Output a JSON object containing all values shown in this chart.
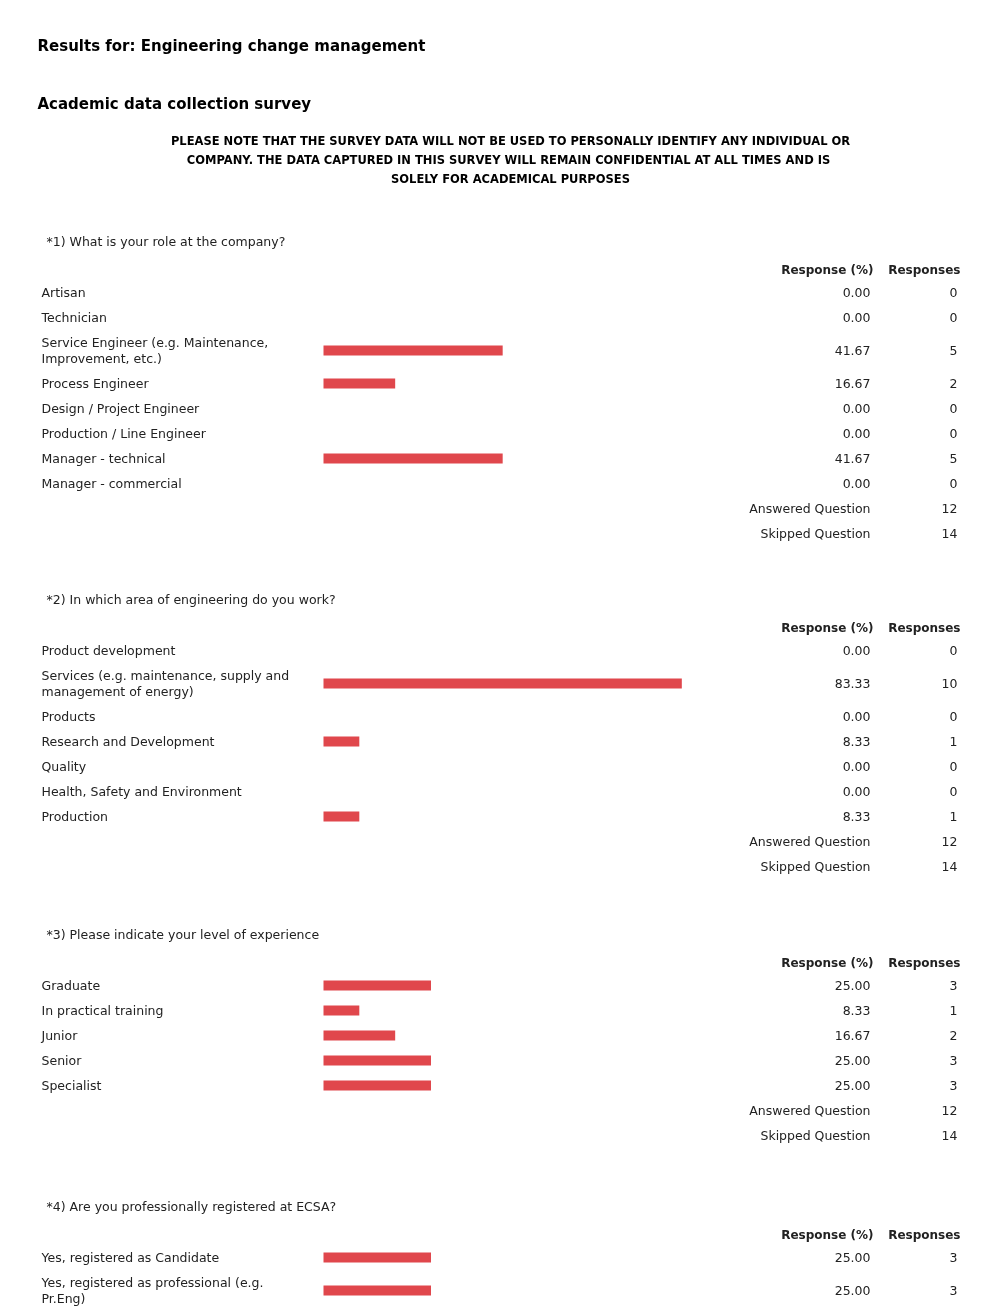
{
  "chart_data": [
    {
      "type": "other",
      "title": "Results for: Engineering change management",
      "subtitle": "Academic data collection survey",
      "annotations": [
        "PLEASE NOTE THAT THE SURVEY DATA WILL NOT BE USED TO PERSONALLY IDENTIFY ANY INDIVIDUAL OR COMPANY.  THE DATA CAPTURED IN THIS SURVEY WILL REMAIN CONFIDENTIAL AT ALL TIMES AND IS SOLELY FOR ACADEMICAL PURPOSES"
      ]
    },
    {
      "type": "bar",
      "orientation": "horizontal",
      "ylabel": "*1) What is your role at the company?",
      "tick_labels": false,
      "color": "#e0474c",
      "categories": [
        "Artisan",
        "Technician",
        "Service Engineer (e.g. Maintenance, Improvement, etc.)",
        "Process Engineer",
        "Design / Project Engineer",
        "Production / Line Engineer",
        "Manager - technical",
        "Manager - commercial"
      ],
      "values": [
        0,
        0,
        41.67,
        16.67,
        0,
        0,
        41.67,
        0
      ],
      "value_labels": [
        "0.00",
        "0.00",
        "41.67",
        "16.67",
        "0.00",
        "0.00",
        "41.67",
        "0.00"
      ],
      "annotations": [
        "Response (%)",
        "Responses",
        "0",
        "0",
        "5",
        "2",
        "0",
        "0",
        "5",
        "0",
        "Answered Question 12",
        "Skipped Question 14"
      ]
    },
    {
      "type": "bar",
      "orientation": "horizontal",
      "ylabel": "*2) In which area of engineering do you work?",
      "tick_labels": false,
      "color": "#e0474c",
      "categories": [
        "Product development",
        "Services (e.g. maintenance, supply and management of energy)",
        "Products",
        "Research and Development",
        "Quality",
        "Health, Safety and Environment",
        "Production"
      ],
      "values": [
        0,
        83.33,
        0,
        8.33,
        0,
        0,
        8.33
      ],
      "value_labels": [
        "0.00",
        "83.33",
        "0.00",
        "8.33",
        "0.00",
        "0.00",
        "8.33"
      ],
      "annotations": [
        "Response (%)",
        "Responses",
        "0",
        "10",
        "0",
        "1",
        "0",
        "0",
        "1",
        "Answered Question 12",
        "Skipped Question 14"
      ]
    },
    {
      "type": "bar",
      "orientation": "horizontal",
      "ylabel": "*3) Please indicate your level of experience",
      "tick_labels": false,
      "color": "#e0474c",
      "categories": [
        "Graduate",
        "In practical training",
        "Junior",
        "Senior",
        "Specialist"
      ],
      "values": [
        25,
        8.33,
        16.67,
        25,
        25
      ],
      "value_labels": [
        "25.00",
        "8.33",
        "16.67",
        "25.00",
        "25.00"
      ],
      "annotations": [
        "Response (%)",
        "Responses",
        "3",
        "1",
        "2",
        "3",
        "3",
        "Answered Question 12",
        "Skipped Question 14"
      ]
    },
    {
      "type": "bar",
      "orientation": "horizontal",
      "ylabel": "*4) Are you professionally registered at ECSA?",
      "tick_labels": false,
      "color": "#e0474c",
      "categories": [
        "Yes, registered as Candidate",
        "Yes, registered as professional (e.g. Pr.Eng)"
      ],
      "values": [
        25,
        25
      ],
      "value_labels": [
        "25.00",
        "25.00"
      ],
      "annotations": [
        "Response (%)",
        "Responses",
        "3",
        "3"
      ]
    }
  ]
}
